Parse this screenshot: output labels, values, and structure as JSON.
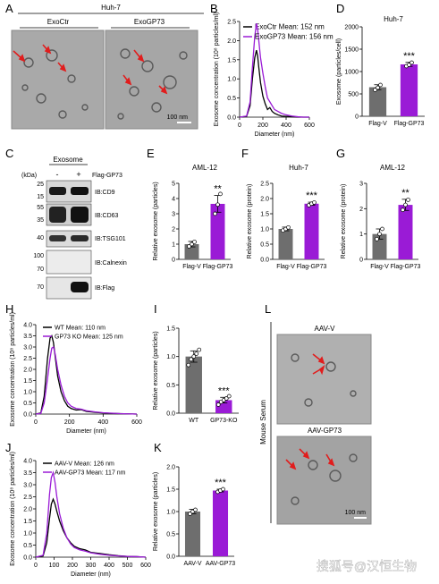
{
  "colors": {
    "black": "#000000",
    "purple": "#9a1bd6",
    "grey": "#6e6e6e",
    "em_bg": "#a9a9a9",
    "em_dark": "#5a5a5a",
    "blot_dark": "#111111",
    "arrow": "#e11d1d"
  },
  "panel_labels": {
    "A": "A",
    "B": "B",
    "C": "C",
    "D": "D",
    "E": "E",
    "F": "F",
    "G": "G",
    "H": "H",
    "I": "I",
    "J": "J",
    "K": "K",
    "L": "L"
  },
  "em_panels": {
    "a_title": "Huh-7",
    "a_left": "ExoCtr",
    "a_right": "ExoGP73",
    "scale_a": "100 nm",
    "l_side": "Mouse Serum",
    "l_top": "AAV-V",
    "l_bottom": "AAV-GP73",
    "scale_l": "100 nm"
  },
  "blot": {
    "title": "Exosome",
    "kda": "(kDa)",
    "minus": "-",
    "plus": "+",
    "row_header": "Flag-GP73",
    "markers": [
      "25",
      "15",
      "55",
      "35",
      "40",
      "100",
      "70",
      "70"
    ],
    "labels": [
      "IB:CD9",
      "IB:CD63",
      "IB:TSG101",
      "IB:Calnexin",
      "IB:Flag"
    ]
  },
  "watermark": "搜狐号@汉恒生物",
  "chart_data": [
    {
      "panel": "B",
      "type": "line",
      "xlabel": "Diameter (nm)",
      "ylabel": "Exosome concentration (10⁸ particles/ml)",
      "xlim": [
        0,
        600
      ],
      "ylim": [
        0,
        2.5
      ],
      "xticks": [
        0,
        200,
        400,
        600
      ],
      "yticks": [
        0.0,
        0.5,
        1.0,
        1.5,
        2.0,
        2.5
      ],
      "series": [
        {
          "name": "ExoCtr Mean: 152 nm",
          "color": "#000000",
          "x": [
            0,
            60,
            90,
            110,
            130,
            145,
            155,
            165,
            180,
            200,
            220,
            240,
            260,
            280,
            300,
            330,
            360,
            400,
            450,
            500,
            550,
            600
          ],
          "y": [
            0,
            0.02,
            0.3,
            1.0,
            1.55,
            1.75,
            1.6,
            1.3,
            0.9,
            0.55,
            0.35,
            0.2,
            0.25,
            0.15,
            0.1,
            0.06,
            0.03,
            0.02,
            0.01,
            0,
            0,
            0
          ]
        },
        {
          "name": "ExoGP73 Mean: 156 nm",
          "color": "#9a1bd6",
          "x": [
            0,
            60,
            90,
            110,
            130,
            145,
            155,
            165,
            180,
            200,
            220,
            240,
            260,
            280,
            300,
            330,
            360,
            400,
            450,
            500,
            550,
            600
          ],
          "y": [
            0,
            0.03,
            0.4,
            1.3,
            2.1,
            2.45,
            2.3,
            2.0,
            1.55,
            1.15,
            0.8,
            0.5,
            0.4,
            0.3,
            0.2,
            0.15,
            0.1,
            0.06,
            0.03,
            0.01,
            0,
            0
          ]
        }
      ]
    },
    {
      "panel": "D",
      "type": "bar",
      "title": "Huh-7",
      "ylabel": "Exosome (particles/cell)",
      "ylim": [
        0,
        2000
      ],
      "yticks": [
        0,
        500,
        1000,
        1500,
        2000
      ],
      "categories": [
        "Flag-V",
        "Flag-GP73"
      ],
      "values": [
        650,
        1160
      ],
      "errors": [
        55,
        45
      ],
      "colors": [
        "#6e6e6e",
        "#9a1bd6"
      ],
      "points": [
        [
          590,
          640,
          700
        ],
        [
          1120,
          1150,
          1200
        ]
      ],
      "sig": "***"
    },
    {
      "panel": "E",
      "type": "bar",
      "title": "AML-12",
      "ylabel": "Relative exosome (particles)",
      "ylim": [
        0,
        5
      ],
      "yticks": [
        0,
        1,
        2,
        3,
        4,
        5
      ],
      "categories": [
        "Flag-V",
        "Flag-GP73"
      ],
      "values": [
        1.0,
        3.65
      ],
      "errors": [
        0.18,
        0.55
      ],
      "colors": [
        "#6e6e6e",
        "#9a1bd6"
      ],
      "points": [
        [
          0.85,
          1.0,
          1.15
        ],
        [
          3.0,
          3.6,
          4.3
        ]
      ],
      "sig": "**"
    },
    {
      "panel": "F",
      "type": "bar",
      "title": "Huh-7",
      "ylabel": "Relative exosome (protein)",
      "ylim": [
        0,
        2.5
      ],
      "yticks": [
        0.0,
        0.5,
        1.0,
        1.5,
        2.0,
        2.5
      ],
      "categories": [
        "Flag-V",
        "Flag-GP73"
      ],
      "values": [
        1.0,
        1.83
      ],
      "errors": [
        0.06,
        0.05
      ],
      "colors": [
        "#6e6e6e",
        "#9a1bd6"
      ],
      "points": [
        [
          0.95,
          1.0,
          1.05
        ],
        [
          1.78,
          1.83,
          1.87
        ]
      ],
      "sig": "***"
    },
    {
      "panel": "G",
      "type": "bar",
      "title": "AML-12",
      "ylabel": "Relative exosome (protein)",
      "ylim": [
        0,
        3
      ],
      "yticks": [
        0,
        1,
        2,
        3
      ],
      "categories": [
        "Flag-V",
        "Flag-GP73"
      ],
      "values": [
        1.0,
        2.15
      ],
      "errors": [
        0.2,
        0.22
      ],
      "colors": [
        "#6e6e6e",
        "#9a1bd6"
      ],
      "points": [
        [
          0.8,
          1.0,
          1.2
        ],
        [
          1.95,
          2.15,
          2.35
        ]
      ],
      "sig": "**"
    },
    {
      "panel": "H",
      "type": "line",
      "xlabel": "Diameter (nm)",
      "ylabel": "Exosome concentration (10⁸ particles/ml)",
      "xlim": [
        0,
        600
      ],
      "ylim": [
        0,
        4.0
      ],
      "xticks": [
        0,
        200,
        400,
        600
      ],
      "yticks": [
        0.0,
        0.5,
        1.0,
        1.5,
        2.0,
        2.5,
        3.0,
        3.5,
        4.0
      ],
      "series": [
        {
          "name": "WT Mean: 110 nm",
          "color": "#000000",
          "x": [
            0,
            30,
            50,
            70,
            85,
            95,
            105,
            115,
            130,
            150,
            170,
            190,
            210,
            240,
            270,
            300,
            350,
            400,
            450,
            500,
            550,
            600
          ],
          "y": [
            0,
            0.05,
            0.8,
            2.5,
            3.4,
            3.5,
            3.2,
            2.6,
            1.7,
            1.0,
            0.6,
            0.35,
            0.25,
            0.18,
            0.2,
            0.12,
            0.08,
            0.05,
            0.03,
            0.02,
            0.01,
            0
          ]
        },
        {
          "name": "GP73 KO Mean: 125 nm",
          "color": "#9a1bd6",
          "x": [
            0,
            30,
            50,
            70,
            85,
            95,
            105,
            115,
            130,
            150,
            170,
            190,
            210,
            240,
            270,
            300,
            350,
            400,
            450,
            500,
            550,
            600
          ],
          "y": [
            0,
            0.03,
            0.5,
            1.6,
            2.5,
            2.95,
            3.0,
            2.7,
            2.0,
            1.3,
            0.8,
            0.5,
            0.35,
            0.25,
            0.22,
            0.15,
            0.1,
            0.06,
            0.04,
            0.02,
            0.01,
            0
          ]
        }
      ]
    },
    {
      "panel": "I",
      "type": "bar",
      "ylabel": "Relative exosome (particles)",
      "ylim": [
        0,
        1.5
      ],
      "yticks": [
        0.0,
        0.5,
        1.0,
        1.5
      ],
      "categories": [
        "WT",
        "GP73-KO"
      ],
      "values": [
        1.0,
        0.23
      ],
      "errors": [
        0.1,
        0.05
      ],
      "colors": [
        "#6e6e6e",
        "#9a1bd6"
      ],
      "points": [
        [
          0.85,
          0.95,
          1.0,
          1.05,
          1.12
        ],
        [
          0.15,
          0.2,
          0.23,
          0.26,
          0.3
        ]
      ],
      "sig": "***"
    },
    {
      "panel": "J",
      "type": "line",
      "xlabel": "Diameter (nm)",
      "ylabel": "Exosome concentration (10⁸ particles/ml)",
      "xlim": [
        0,
        600
      ],
      "ylim": [
        0,
        4.0
      ],
      "xticks": [
        0,
        100,
        200,
        300,
        400,
        500,
        600
      ],
      "yticks": [
        0.0,
        0.5,
        1.0,
        1.5,
        2.0,
        2.5,
        3.0,
        3.5,
        4.0
      ],
      "series": [
        {
          "name": "AAV-V Mean: 126 nm",
          "color": "#000000",
          "x": [
            0,
            40,
            60,
            75,
            85,
            95,
            105,
            115,
            130,
            150,
            170,
            190,
            210,
            240,
            270,
            300,
            350,
            400,
            450,
            500,
            550,
            600
          ],
          "y": [
            0,
            0.05,
            0.6,
            1.6,
            2.2,
            2.4,
            2.2,
            1.9,
            1.5,
            1.1,
            0.8,
            0.6,
            0.45,
            0.35,
            0.3,
            0.2,
            0.15,
            0.1,
            0.06,
            0.03,
            0.02,
            0
          ]
        },
        {
          "name": "AAV-GP73 Mean: 117 nm",
          "color": "#9a1bd6",
          "x": [
            0,
            40,
            60,
            75,
            85,
            95,
            105,
            115,
            130,
            150,
            170,
            190,
            210,
            240,
            270,
            300,
            350,
            400,
            450,
            500,
            550,
            600
          ],
          "y": [
            0,
            0.08,
            1.0,
            2.6,
            3.3,
            3.5,
            3.1,
            2.5,
            1.8,
            1.2,
            0.8,
            0.55,
            0.4,
            0.3,
            0.25,
            0.18,
            0.12,
            0.08,
            0.05,
            0.03,
            0.02,
            0
          ]
        }
      ]
    },
    {
      "panel": "K",
      "type": "bar",
      "ylabel": "Relative exosome (particles)",
      "ylim": [
        0,
        2.0
      ],
      "yticks": [
        0.0,
        0.5,
        1.0,
        1.5,
        2.0
      ],
      "categories": [
        "AAV-V",
        "AAV-GP73"
      ],
      "values": [
        1.0,
        1.47
      ],
      "errors": [
        0.05,
        0.03
      ],
      "colors": [
        "#6e6e6e",
        "#9a1bd6"
      ],
      "points": [
        [
          0.95,
          1.0,
          1.04
        ],
        [
          1.44,
          1.47,
          1.5
        ]
      ],
      "sig": "***"
    }
  ]
}
